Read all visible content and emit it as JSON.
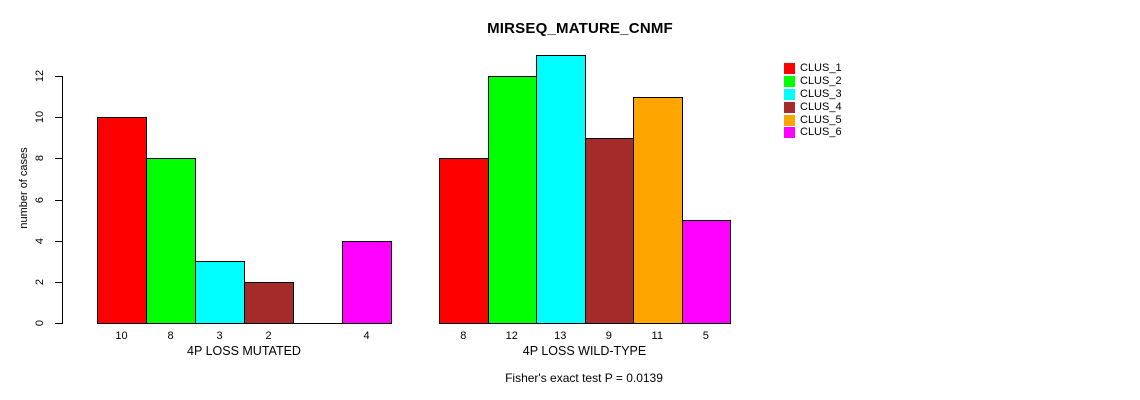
{
  "chart_data": {
    "type": "bar",
    "title": "MIRSEQ_MATURE_CNMF",
    "subtitle": "Fisher's exact test P = 0.0139",
    "xlabel": "",
    "ylabel": "number of cases",
    "ylim": [
      0,
      12
    ],
    "yticks": [
      "0",
      "2",
      "4",
      "6",
      "8",
      "10",
      "12"
    ],
    "grid": false,
    "legend_position": "top-right",
    "categories": [
      "4P LOSS MUTATED",
      "4P LOSS WILD-TYPE"
    ],
    "series": [
      {
        "name": "CLUS_1",
        "color": "#ff0000",
        "values": [
          10,
          8
        ]
      },
      {
        "name": "CLUS_2",
        "color": "#00ff00",
        "values": [
          8,
          12
        ]
      },
      {
        "name": "CLUS_3",
        "color": "#00ffff",
        "values": [
          3,
          13
        ]
      },
      {
        "name": "CLUS_4",
        "color": "#a52a2a",
        "values": [
          2,
          9
        ]
      },
      {
        "name": "CLUS_5",
        "color": "#ffa500",
        "values": [
          0,
          11
        ]
      },
      {
        "name": "CLUS_6",
        "color": "#ff00ff",
        "values": [
          4,
          5
        ]
      }
    ],
    "bar_value_labels": [
      [
        "10",
        "8",
        "3",
        "2",
        "",
        "4"
      ],
      [
        "8",
        "12",
        "13",
        "9",
        "11",
        "5"
      ]
    ]
  }
}
